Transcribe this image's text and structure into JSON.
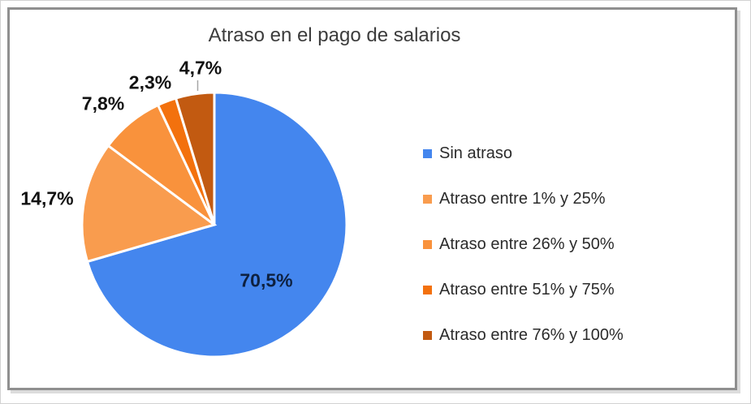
{
  "chart_data": {
    "type": "pie",
    "title": "Atraso en el pago de salarios",
    "direction": "clockwise",
    "start_angle_deg": 0,
    "legend_position": "right",
    "decimal_separator": ",",
    "slices": [
      {
        "label": "Sin atraso",
        "value": 70.5,
        "display": "70,5%",
        "color": "#4486EE"
      },
      {
        "label": "Atraso entre 1% y 25%",
        "value": 14.7,
        "display": "14,7%",
        "color": "#F99C4E"
      },
      {
        "label": "Atraso entre 26% y 50%",
        "value": 7.8,
        "display": "7,8%",
        "color": "#F9923C"
      },
      {
        "label": "Atraso entre 51% y 75%",
        "value": 2.3,
        "display": "2,3%",
        "color": "#F3710D"
      },
      {
        "label": "Atraso entre 76% y 100%",
        "value": 4.7,
        "display": "4,7%",
        "color": "#C25A11"
      }
    ],
    "separator_color": "#FFFFFF",
    "leader_line_color": "#A6A6A6"
  }
}
